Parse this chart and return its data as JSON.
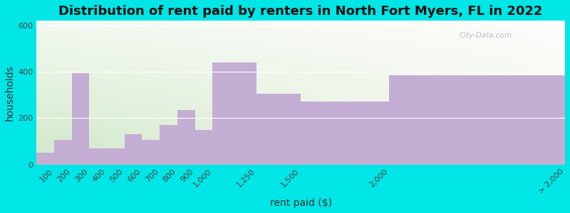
{
  "title": "Distribution of rent paid by renters in North Fort Myers, FL in 2022",
  "xlabel": "rent paid ($)",
  "ylabel": "households",
  "bin_edges": [
    0,
    100,
    200,
    300,
    400,
    500,
    600,
    700,
    800,
    900,
    1000,
    1250,
    1500,
    2000,
    3000
  ],
  "tick_positions": [
    100,
    200,
    300,
    400,
    500,
    600,
    700,
    800,
    900,
    1000,
    1250,
    1500,
    2000,
    3000
  ],
  "tick_labels": [
    "100",
    "200",
    "300",
    "400",
    "500",
    "600",
    "700",
    "800",
    "900",
    "1,000",
    "1,250",
    "1,500",
    "2,000",
    "> 2,000"
  ],
  "values": [
    50,
    105,
    395,
    70,
    70,
    130,
    105,
    170,
    235,
    150,
    440,
    305,
    270,
    385
  ],
  "bar_color": "#c5aed4",
  "bg_outer": "#00e5e5",
  "ylim": [
    0,
    620
  ],
  "yticks": [
    0,
    200,
    400,
    600
  ],
  "title_fontsize": 13,
  "axis_label_fontsize": 10,
  "tick_fontsize": 8,
  "watermark": "City-Data.com"
}
